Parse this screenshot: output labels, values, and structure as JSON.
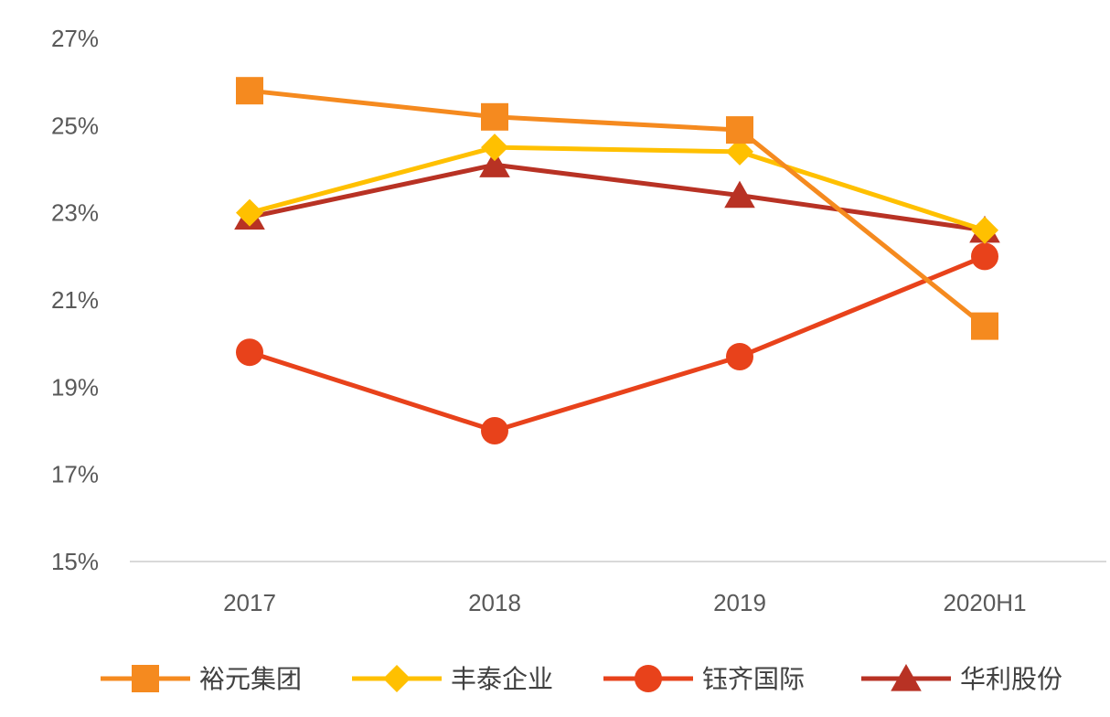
{
  "chart_data": {
    "type": "line",
    "categories": [
      "2017",
      "2018",
      "2019",
      "2020H1"
    ],
    "ylim": [
      15,
      27
    ],
    "yticks": [
      "15%",
      "17%",
      "19%",
      "21%",
      "23%",
      "25%",
      "27%"
    ],
    "ytick_values": [
      15,
      17,
      19,
      21,
      23,
      25,
      27
    ],
    "grid": false,
    "legend_position": "bottom",
    "series": [
      {
        "name": "裕元集团",
        "values": [
          25.8,
          25.2,
          24.9,
          20.4
        ],
        "color": "#F58A1F",
        "marker": "square"
      },
      {
        "name": "丰泰企业",
        "values": [
          23.0,
          24.5,
          24.4,
          22.6
        ],
        "color": "#FFC000",
        "marker": "diamond"
      },
      {
        "name": "钰齐国际",
        "values": [
          19.8,
          18.0,
          19.7,
          22.0
        ],
        "color": "#E8421B",
        "marker": "circle"
      },
      {
        "name": "华利股份",
        "values": [
          22.9,
          24.1,
          23.4,
          22.6
        ],
        "color": "#B83224",
        "marker": "triangle"
      }
    ]
  }
}
